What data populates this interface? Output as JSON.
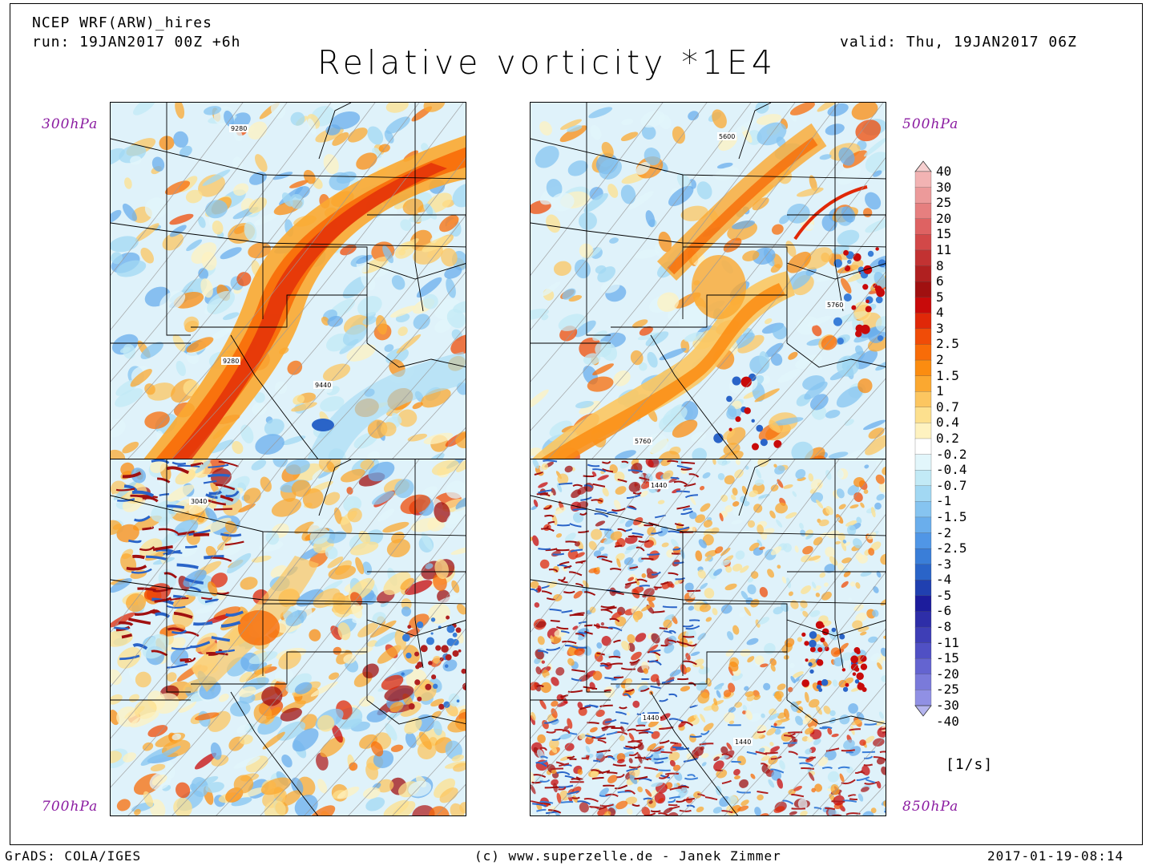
{
  "header": {
    "model": "NCEP WRF(ARW)_hires",
    "run": "run: 19JAN2017 00Z +6h",
    "valid": "valid: Thu, 19JAN2017 06Z",
    "title": "Relative vorticity *1E4"
  },
  "panels": [
    {
      "level": "300hPa",
      "contours": [
        "9280",
        "9280",
        "9440"
      ],
      "theme": "jet300"
    },
    {
      "level": "500hPa",
      "contours": [
        "5600",
        "5760",
        "5760"
      ],
      "theme": "jet500"
    },
    {
      "level": "700hPa",
      "contours": [
        "3040"
      ],
      "theme": "mid700"
    },
    {
      "level": "850hPa",
      "contours": [
        "1440",
        "1440",
        "1440"
      ],
      "theme": "low850"
    }
  ],
  "colorbar": {
    "labels": [
      "40",
      "30",
      "25",
      "20",
      "15",
      "11",
      "8",
      "6",
      "5",
      "4",
      "3",
      "2.5",
      "2",
      "1.5",
      "1",
      "0.7",
      "0.4",
      "0.2",
      "-0.2",
      "-0.4",
      "-0.7",
      "-1",
      "-1.5",
      "-2",
      "-2.5",
      "-3",
      "-4",
      "-5",
      "-6",
      "-8",
      "-11",
      "-15",
      "-20",
      "-25",
      "-30",
      "-40"
    ],
    "colors": [
      "#f6cfcf",
      "#f2b3b3",
      "#ec9a9a",
      "#e67f7f",
      "#de6262",
      "#d24848",
      "#c23232",
      "#b02020",
      "#a01010",
      "#c80a0a",
      "#e02808",
      "#f04c08",
      "#f86c08",
      "#fb8c10",
      "#fba830",
      "#fcc660",
      "#fde08e",
      "#fef2c0",
      "#ffffff",
      "#e2f6fb",
      "#c2eaf6",
      "#a2d8f3",
      "#86c4f0",
      "#6aaeec",
      "#5096e6",
      "#3a7ed8",
      "#2a64c8",
      "#2040b0",
      "#1c1c9c",
      "#2e2ea8",
      "#3e3eb6",
      "#5050c4",
      "#6464d0",
      "#7a7ada",
      "#9090e4",
      "#b4b4ee"
    ]
  },
  "unit": "[1/s]",
  "footer": {
    "left": "GrADS: COLA/IGES",
    "center": "(c) www.superzelle.de - Janek Zimmer",
    "right": "2017-01-19-08:14"
  }
}
